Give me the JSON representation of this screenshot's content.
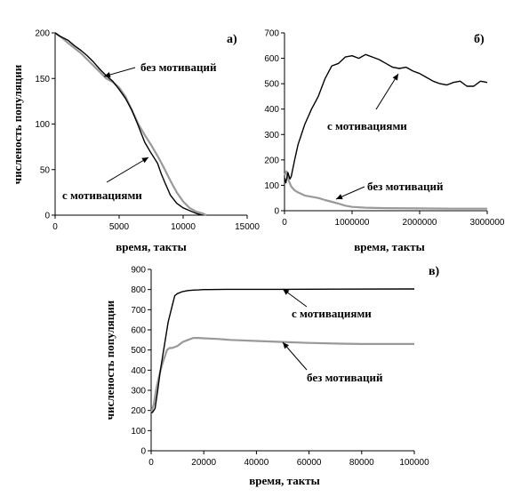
{
  "chart_data": [
    {
      "type": "line",
      "panel_label": "а)",
      "xlabel": "время, такты",
      "ylabel": "численость популяции",
      "xlim": [
        0,
        15000
      ],
      "ylim": [
        0,
        200
      ],
      "xticks": [
        0,
        5000,
        10000,
        15000
      ],
      "yticks": [
        0,
        50,
        100,
        150,
        200
      ],
      "series": [
        {
          "name": "с мотивациями",
          "color": "#000000",
          "x": [
            0,
            300,
            1000,
            1500,
            2000,
            2500,
            3000,
            3500,
            4000,
            4500,
            5000,
            5500,
            6000,
            6500,
            7000,
            7500,
            8000,
            8300,
            8600,
            9000,
            9500,
            10000,
            10500,
            11000,
            11500
          ],
          "y": [
            200,
            197,
            192,
            186,
            181,
            175,
            168,
            160,
            153,
            147,
            138,
            128,
            115,
            98,
            80,
            68,
            57,
            45,
            35,
            22,
            13,
            8,
            5,
            2,
            0
          ]
        },
        {
          "name": "без мотиваций",
          "color": "#999999",
          "x": [
            0,
            500,
            1000,
            2000,
            3000,
            4000,
            4500,
            5000,
            5500,
            6000,
            6500,
            7000,
            7500,
            8000,
            8500,
            9000,
            9500,
            10000,
            10500,
            11000,
            11500,
            11800
          ],
          "y": [
            200,
            195,
            189,
            178,
            164,
            150,
            146,
            140,
            130,
            115,
            100,
            88,
            77,
            65,
            52,
            38,
            25,
            15,
            8,
            4,
            2,
            0
          ]
        }
      ],
      "annotations": [
        {
          "text": "без мотиваций",
          "target_series": "без мотиваций"
        },
        {
          "text": "с мотивациями",
          "target_series": "с мотивациями"
        }
      ]
    },
    {
      "type": "line",
      "panel_label": "б)",
      "xlabel": "время, такты",
      "ylabel": "",
      "xlim": [
        0,
        3000000
      ],
      "ylim": [
        0,
        700
      ],
      "xticks": [
        0,
        1000000,
        2000000,
        3000000
      ],
      "yticks": [
        0,
        100,
        200,
        300,
        400,
        500,
        600,
        700
      ],
      "series": [
        {
          "name": "с мотивациями",
          "color": "#000000",
          "x": [
            0,
            20000,
            50000,
            80000,
            100000,
            150000,
            200000,
            300000,
            400000,
            500000,
            600000,
            700000,
            800000,
            900000,
            1000000,
            1100000,
            1200000,
            1300000,
            1400000,
            1500000,
            1600000,
            1700000,
            1800000,
            1900000,
            2000000,
            2100000,
            2200000,
            2300000,
            2400000,
            2500000,
            2600000,
            2700000,
            2800000,
            2900000,
            3000000
          ],
          "y": [
            130,
            110,
            150,
            125,
            135,
            200,
            260,
            340,
            400,
            450,
            520,
            570,
            580,
            605,
            610,
            600,
            615,
            605,
            595,
            580,
            565,
            560,
            565,
            550,
            540,
            525,
            510,
            500,
            495,
            505,
            510,
            490,
            490,
            510,
            505
          ]
        },
        {
          "name": "без мотиваций",
          "color": "#999999",
          "x": [
            0,
            30000,
            60000,
            100000,
            150000,
            200000,
            300000,
            400000,
            500000,
            600000,
            700000,
            800000,
            900000,
            1000000,
            1200000,
            1500000,
            2000000,
            2500000,
            3000000
          ],
          "y": [
            140,
            155,
            120,
            95,
            80,
            72,
            60,
            55,
            50,
            42,
            35,
            28,
            20,
            15,
            12,
            10,
            9,
            8,
            8
          ]
        }
      ],
      "annotations": [
        {
          "text": "с мотивациями",
          "target_series": "с мотивациями"
        },
        {
          "text": "без мотиваций",
          "target_series": "без мотиваций"
        }
      ]
    },
    {
      "type": "line",
      "panel_label": "в)",
      "xlabel": "время, такты",
      "ylabel": "численость популяции",
      "xlim": [
        0,
        100000
      ],
      "ylim": [
        0,
        900
      ],
      "xticks": [
        0,
        20000,
        40000,
        60000,
        80000,
        100000
      ],
      "yticks": [
        0,
        100,
        200,
        300,
        400,
        500,
        600,
        700,
        800,
        900
      ],
      "series": [
        {
          "name": "с мотивациями",
          "color": "#000000",
          "x": [
            0,
            500,
            1500,
            2500,
            3500,
            5000,
            6500,
            8000,
            9000,
            10000,
            12000,
            14000,
            16000,
            18000,
            20000,
            22000,
            30000,
            50000,
            70000,
            100000
          ],
          "y": [
            190,
            190,
            210,
            300,
            400,
            520,
            640,
            720,
            770,
            780,
            790,
            795,
            797,
            798,
            800,
            800,
            801,
            801,
            802,
            803
          ]
        },
        {
          "name": "без мотиваций",
          "color": "#999999",
          "x": [
            0,
            1000,
            2000,
            3000,
            4000,
            5000,
            6000,
            7000,
            8000,
            10000,
            12000,
            14000,
            16000,
            18000,
            20000,
            25000,
            30000,
            40000,
            50000,
            60000,
            70000,
            80000,
            90000,
            100000
          ],
          "y": [
            190,
            230,
            310,
            370,
            420,
            460,
            500,
            510,
            510,
            520,
            540,
            550,
            560,
            560,
            558,
            555,
            550,
            545,
            540,
            535,
            532,
            530,
            530,
            530
          ]
        }
      ],
      "annotations": [
        {
          "text": "с мотивациями",
          "target_series": "с мотивациями"
        },
        {
          "text": "без мотиваций",
          "target_series": "без мотиваций"
        }
      ]
    }
  ]
}
